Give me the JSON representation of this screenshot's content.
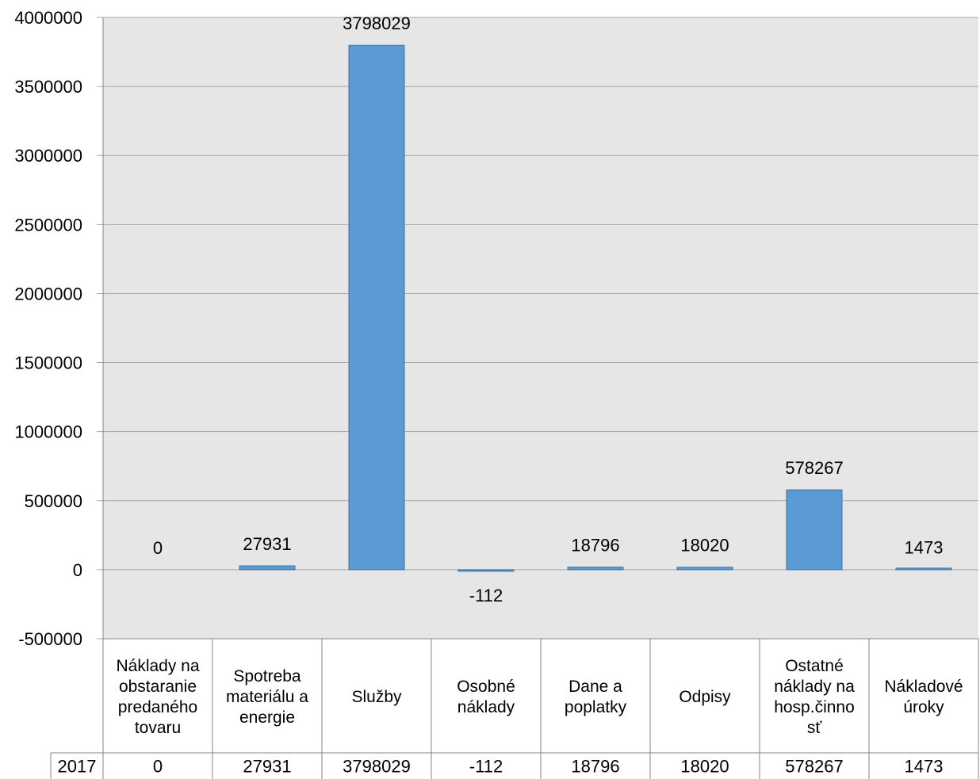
{
  "chart_data": {
    "type": "bar",
    "categories": [
      "Náklady na obstaranie predaného tovaru",
      "Spotreba materiálu a energie",
      "Služby",
      "Osobné náklady",
      "Dane a poplatky",
      "Odpisy",
      "Ostatné náklady na hosp.činnosť",
      "Nákladové úroky"
    ],
    "category_label_lines": [
      [
        "Náklady na",
        "obstaranie",
        "predaného",
        "tovaru"
      ],
      [
        "Spotreba",
        "materiálu a",
        "energie"
      ],
      [
        "Služby"
      ],
      [
        "Osobné",
        "náklady"
      ],
      [
        "Dane a",
        "poplatky"
      ],
      [
        "Odpisy"
      ],
      [
        "Ostatné",
        "náklady na",
        "hosp.činno",
        "sť"
      ],
      [
        "Nákladové",
        "úroky"
      ]
    ],
    "series": [
      {
        "name": "2017",
        "values": [
          0,
          27931,
          3798029,
          -112,
          18796,
          18020,
          578267,
          1473
        ]
      }
    ],
    "data_labels": [
      "0",
      "27931",
      "3798029",
      "-112",
      "18796",
      "18020",
      "578267",
      "1473"
    ],
    "y_ticks": [
      -500000,
      0,
      500000,
      1000000,
      1500000,
      2000000,
      2500000,
      3000000,
      3500000,
      4000000
    ],
    "y_tick_labels": [
      "-500000",
      "0",
      "500000",
      "1000000",
      "1500000",
      "2000000",
      "2500000",
      "3000000",
      "3500000",
      "4000000"
    ],
    "ylim": [
      -500000,
      4000000
    ],
    "grid": true,
    "data_table": true,
    "colors": {
      "bar": "#5b9bd5",
      "bar_border": "#41719c",
      "plot_background": "#e7e6e6",
      "grid": "#a6a6a6",
      "axis": "#868686"
    }
  }
}
